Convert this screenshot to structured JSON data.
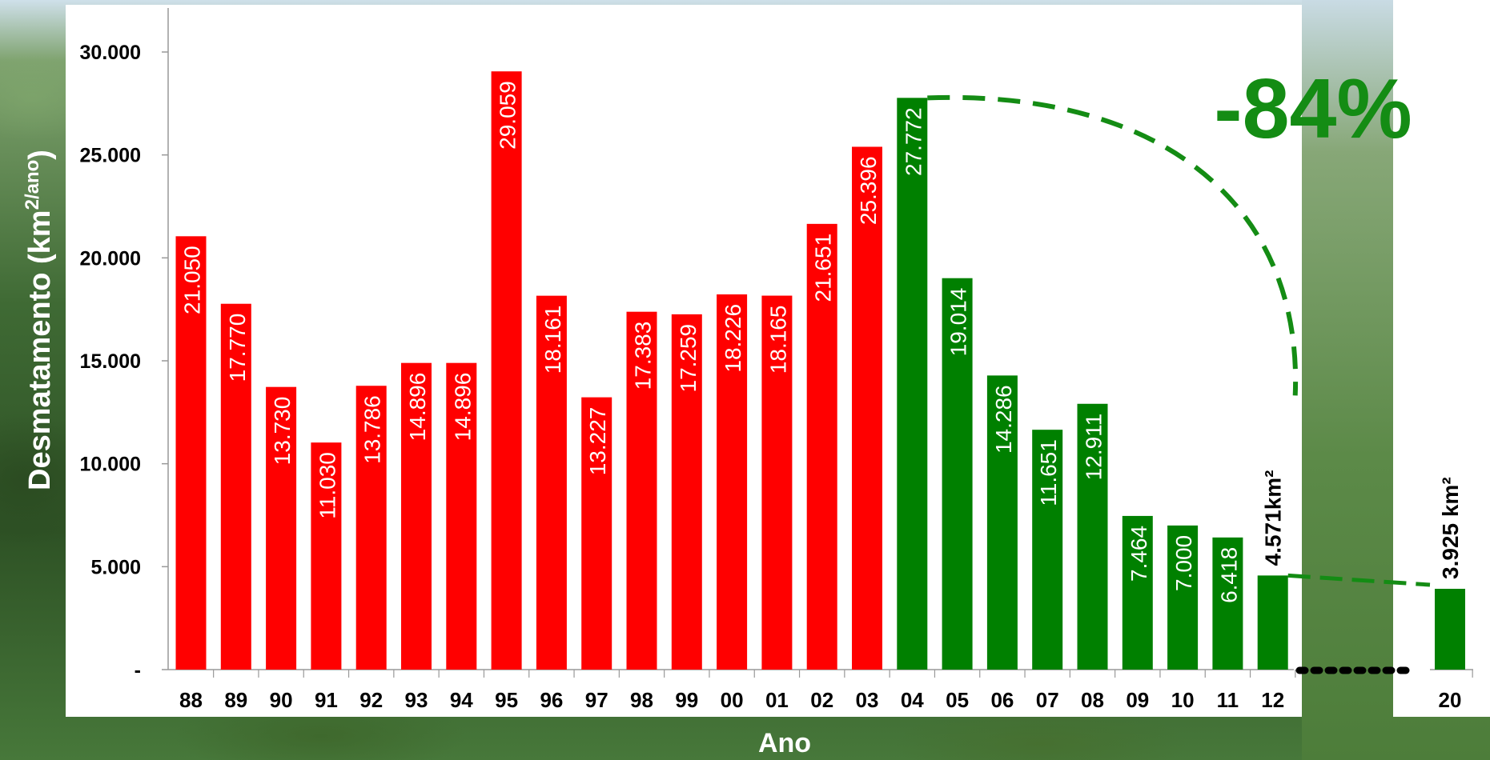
{
  "chart_data": {
    "type": "bar",
    "xlabel": "Ano",
    "ylabel": "Desmatamento (km",
    "ylabel_sup": "2/ano",
    "ylabel_close": ")",
    "ylim": [
      0,
      30000
    ],
    "yticks": [
      {
        "value": 0,
        "label": "-"
      },
      {
        "value": 5000,
        "label": "5.000"
      },
      {
        "value": 10000,
        "label": "10.000"
      },
      {
        "value": 15000,
        "label": "15.000"
      },
      {
        "value": 20000,
        "label": "20.000"
      },
      {
        "value": 25000,
        "label": "25.000"
      },
      {
        "value": 30000,
        "label": "30.000"
      }
    ],
    "grid": false,
    "bars": [
      {
        "category": "88",
        "value": 21050,
        "label": "21.050",
        "color": "#ff0000"
      },
      {
        "category": "89",
        "value": 17770,
        "label": "17.770",
        "color": "#ff0000"
      },
      {
        "category": "90",
        "value": 13730,
        "label": "13.730",
        "color": "#ff0000"
      },
      {
        "category": "91",
        "value": 11030,
        "label": "11.030",
        "color": "#ff0000"
      },
      {
        "category": "92",
        "value": 13786,
        "label": "13.786",
        "color": "#ff0000"
      },
      {
        "category": "93",
        "value": 14896,
        "label": "14.896",
        "color": "#ff0000"
      },
      {
        "category": "94",
        "value": 14896,
        "label": "14.896",
        "color": "#ff0000"
      },
      {
        "category": "95",
        "value": 29059,
        "label": "29.059",
        "color": "#ff0000"
      },
      {
        "category": "96",
        "value": 18161,
        "label": "18.161",
        "color": "#ff0000"
      },
      {
        "category": "97",
        "value": 13227,
        "label": "13.227",
        "color": "#ff0000"
      },
      {
        "category": "98",
        "value": 17383,
        "label": "17.383",
        "color": "#ff0000"
      },
      {
        "category": "99",
        "value": 17259,
        "label": "17.259",
        "color": "#ff0000"
      },
      {
        "category": "00",
        "value": 18226,
        "label": "18.226",
        "color": "#ff0000"
      },
      {
        "category": "01",
        "value": 18165,
        "label": "18.165",
        "color": "#ff0000"
      },
      {
        "category": "02",
        "value": 21651,
        "label": "21.651",
        "color": "#ff0000"
      },
      {
        "category": "03",
        "value": 25396,
        "label": "25.396",
        "color": "#ff0000"
      },
      {
        "category": "04",
        "value": 27772,
        "label": "27.772",
        "color": "#008000"
      },
      {
        "category": "05",
        "value": 19014,
        "label": "19.014",
        "color": "#008000"
      },
      {
        "category": "06",
        "value": 14286,
        "label": "14.286",
        "color": "#008000"
      },
      {
        "category": "07",
        "value": 11651,
        "label": "11.651",
        "color": "#008000"
      },
      {
        "category": "08",
        "value": 12911,
        "label": "12.911",
        "color": "#008000"
      },
      {
        "category": "09",
        "value": 7464,
        "label": "7.464",
        "color": "#008000"
      },
      {
        "category": "10",
        "value": 7000,
        "label": "7.000",
        "color": "#008000"
      },
      {
        "category": "11",
        "value": 6418,
        "label": "6.418",
        "color": "#008000"
      },
      {
        "category": "12",
        "value": 4571,
        "label": "4.571km²",
        "color": "#008000",
        "label_outside": true
      },
      {
        "category": "20",
        "value": 3925,
        "label": "3.925 km²",
        "color": "#008000",
        "label_outside": true,
        "gap_before": true
      }
    ],
    "annotations": {
      "reduction_text": "-84%",
      "reduction_color": "#148c14",
      "dashed_curve_color": "#148c14",
      "gap_dots_color": "#000000"
    }
  }
}
